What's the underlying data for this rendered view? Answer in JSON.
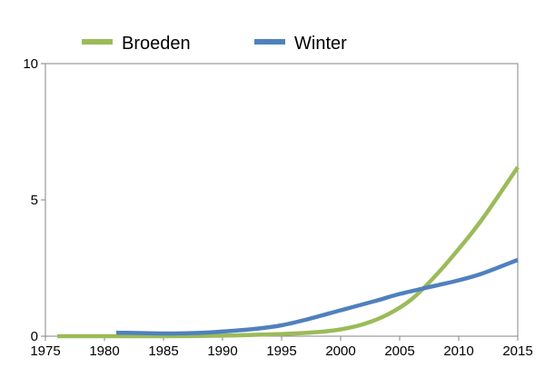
{
  "chart_data": {
    "type": "line",
    "title": "",
    "xlabel": "",
    "ylabel": "",
    "xlim": [
      1975,
      2015
    ],
    "ylim": [
      0,
      10
    ],
    "x_ticks": [
      1975,
      1980,
      1985,
      1990,
      1995,
      2000,
      2005,
      2010,
      2015
    ],
    "y_ticks": [
      0,
      5,
      10
    ],
    "x_tick_labels": [
      "1975",
      "1980",
      "1985",
      "1990",
      "1995",
      "2000",
      "2005",
      "2010",
      "2015"
    ],
    "y_tick_labels": [
      "0",
      "5",
      "10"
    ],
    "grid": false,
    "legend_position": "top",
    "series": [
      {
        "name": "Broeden",
        "color": "#9BBB59",
        "x": [
          1976,
          1980,
          1985,
          1990,
          1995,
          1998,
          2000,
          2002,
          2004,
          2006,
          2008,
          2010,
          2012,
          2015
        ],
        "values": [
          0.0,
          0.0,
          0.0,
          0.02,
          0.08,
          0.15,
          0.25,
          0.45,
          0.8,
          1.35,
          2.2,
          3.2,
          4.3,
          6.2
        ]
      },
      {
        "name": "Winter",
        "color": "#4F81BD",
        "x": [
          1981,
          1985,
          1988,
          1990,
          1993,
          1995,
          1997,
          2000,
          2003,
          2005,
          2008,
          2010,
          2012,
          2015
        ],
        "values": [
          0.13,
          0.1,
          0.12,
          0.17,
          0.28,
          0.4,
          0.6,
          0.95,
          1.3,
          1.55,
          1.85,
          2.05,
          2.3,
          2.8
        ]
      }
    ]
  }
}
